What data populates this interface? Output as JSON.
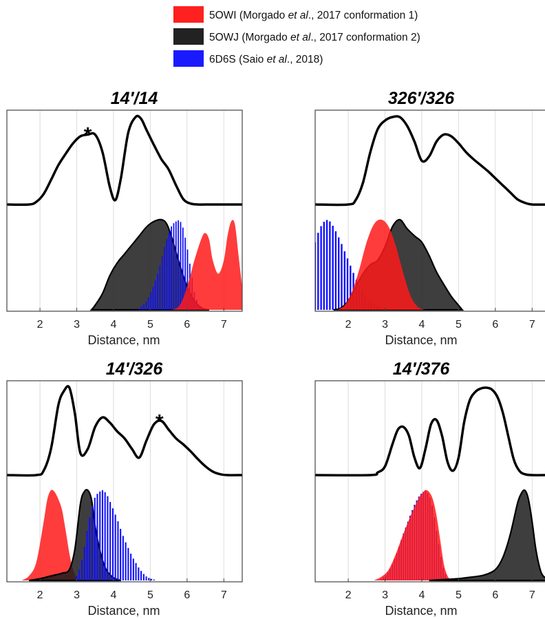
{
  "legend": {
    "items": [
      {
        "parts": [
          {
            "t": "5OWI (Morgado "
          },
          {
            "t": "et al",
            "i": true
          },
          {
            "t": "., 2017 conformation 1)"
          }
        ],
        "color": "#ff2020"
      },
      {
        "parts": [
          {
            "t": "5OWJ (Morgado "
          },
          {
            "t": "et al",
            "i": true
          },
          {
            "t": "., 2017 conformation 2)"
          }
        ],
        "color": "#222222"
      },
      {
        "parts": [
          {
            "t": "6D6S (Saio "
          },
          {
            "t": "et al",
            "i": true
          },
          {
            "t": "., 2018)"
          }
        ],
        "color": "#1a1aff"
      }
    ]
  },
  "colors": {
    "5OWI": "#ff1a1a",
    "5OWJ": "#1c1c1c",
    "6D6S": "#1010ff",
    "experimental": "#000000",
    "grid": "#dcdcdc"
  },
  "chart_data": [
    {
      "type": "area",
      "title": "14′/14",
      "xlabel": "Distance, nm",
      "xlim": [
        1.1,
        7.5
      ],
      "xticks": [
        2,
        3,
        4,
        5,
        6,
        7
      ],
      "grid": true,
      "annotations": [
        {
          "text": "*",
          "x": 3.3
        }
      ],
      "experimental": {
        "x": [
          1.1,
          1.7,
          1.9,
          2.1,
          2.3,
          2.5,
          2.7,
          2.9,
          3.1,
          3.3,
          3.5,
          3.7,
          3.9,
          4.05,
          4.2,
          4.4,
          4.6,
          4.75,
          4.9,
          5.1,
          5.3,
          5.5,
          5.7,
          5.9,
          6.1,
          6.3,
          6.5,
          7.5
        ],
        "y": [
          0,
          0,
          0.03,
          0.12,
          0.28,
          0.45,
          0.58,
          0.7,
          0.78,
          0.8,
          0.8,
          0.6,
          0.2,
          0.05,
          0.3,
          0.82,
          1.0,
          0.98,
          0.85,
          0.68,
          0.52,
          0.4,
          0.22,
          0.06,
          0.01,
          0,
          0,
          0
        ]
      },
      "series": [
        {
          "name": "5OWJ",
          "x": [
            3.4,
            3.5,
            3.7,
            3.9,
            4.1,
            4.3,
            4.5,
            4.7,
            4.9,
            5.1,
            5.3,
            5.45,
            5.6,
            5.8,
            6.0,
            6.2,
            6.4,
            6.6
          ],
          "y": [
            0,
            0.05,
            0.18,
            0.38,
            0.52,
            0.62,
            0.72,
            0.82,
            0.92,
            0.98,
            1.0,
            0.95,
            0.78,
            0.5,
            0.26,
            0.1,
            0.02,
            0
          ]
        },
        {
          "name": "6D6S",
          "type": "histogram",
          "bin_width": 0.0625,
          "x": [
            4.7,
            4.8,
            4.9,
            5.0,
            5.1,
            5.2,
            5.3,
            5.4,
            5.5,
            5.6,
            5.7,
            5.8,
            5.9,
            6.0,
            6.1,
            6.2,
            6.3,
            6.4
          ],
          "y": [
            0.02,
            0.05,
            0.1,
            0.18,
            0.28,
            0.4,
            0.55,
            0.72,
            0.85,
            0.95,
            0.98,
            1.0,
            0.9,
            0.7,
            0.45,
            0.2,
            0.06,
            0.01
          ]
        },
        {
          "name": "5OWI",
          "x": [
            5.6,
            5.8,
            6.0,
            6.2,
            6.4,
            6.5,
            6.6,
            6.7,
            6.85,
            7.0,
            7.1,
            7.2,
            7.3,
            7.4,
            7.5
          ],
          "y": [
            0,
            0.05,
            0.25,
            0.55,
            0.8,
            0.85,
            0.78,
            0.55,
            0.4,
            0.55,
            0.82,
            0.98,
            0.95,
            0.6,
            0.25
          ]
        }
      ]
    },
    {
      "type": "area",
      "title": "326′/326",
      "xlabel": "Distance, nm",
      "xlim": [
        1.1,
        7.5
      ],
      "xticks": [
        2,
        3,
        4,
        5,
        6,
        7
      ],
      "grid": true,
      "annotations": [],
      "experimental": {
        "x": [
          1.1,
          2.0,
          2.2,
          2.4,
          2.6,
          2.8,
          3.0,
          3.2,
          3.4,
          3.6,
          3.8,
          4.0,
          4.2,
          4.4,
          4.6,
          4.8,
          5.0,
          5.2,
          5.4,
          5.6,
          5.8,
          6.0,
          6.2,
          6.4,
          6.6,
          6.8,
          7.0,
          7.5
        ],
        "y": [
          0,
          0,
          0.05,
          0.25,
          0.6,
          0.86,
          0.96,
          1.0,
          1.0,
          0.9,
          0.72,
          0.5,
          0.55,
          0.72,
          0.8,
          0.78,
          0.7,
          0.6,
          0.52,
          0.45,
          0.38,
          0.3,
          0.22,
          0.14,
          0.06,
          0.02,
          0,
          0
        ]
      },
      "series": [
        {
          "name": "6D6S",
          "type": "histogram",
          "bin_width": 0.08,
          "x": [
            1.1,
            1.2,
            1.3,
            1.4,
            1.5,
            1.6,
            1.7,
            1.8,
            1.9,
            2.0,
            2.1,
            2.2,
            2.3,
            2.4,
            2.5,
            2.6,
            2.7,
            2.8,
            2.9,
            3.0,
            3.1
          ],
          "y": [
            0.75,
            0.88,
            0.96,
            1.0,
            0.98,
            0.92,
            0.84,
            0.75,
            0.65,
            0.55,
            0.45,
            0.35,
            0.27,
            0.2,
            0.14,
            0.1,
            0.07,
            0.04,
            0.02,
            0.01,
            0
          ]
        },
        {
          "name": "5OWJ",
          "x": [
            1.6,
            1.8,
            2.0,
            2.2,
            2.4,
            2.6,
            2.8,
            3.0,
            3.2,
            3.4,
            3.6,
            3.8,
            4.0,
            4.2,
            4.4,
            4.6,
            4.8,
            5.0,
            5.1
          ],
          "y": [
            0,
            0.02,
            0.1,
            0.25,
            0.4,
            0.5,
            0.55,
            0.7,
            0.92,
            1.0,
            0.9,
            0.82,
            0.75,
            0.6,
            0.42,
            0.28,
            0.15,
            0.05,
            0
          ]
        },
        {
          "name": "5OWI",
          "x": [
            1.7,
            1.9,
            2.1,
            2.3,
            2.5,
            2.7,
            2.9,
            3.1,
            3.3,
            3.5,
            3.7,
            3.9,
            4.1
          ],
          "y": [
            0,
            0.05,
            0.2,
            0.45,
            0.75,
            0.95,
            1.0,
            0.92,
            0.7,
            0.4,
            0.15,
            0.03,
            0
          ]
        }
      ]
    },
    {
      "type": "area",
      "title": "14′/326",
      "xlabel": "Distance, nm",
      "xlim": [
        1.1,
        7.5
      ],
      "xticks": [
        2,
        3,
        4,
        5,
        6,
        7
      ],
      "grid": true,
      "annotations": [
        {
          "text": "*",
          "x": 5.25
        }
      ],
      "experimental": {
        "x": [
          1.1,
          1.9,
          2.1,
          2.3,
          2.5,
          2.65,
          2.8,
          2.95,
          3.1,
          3.3,
          3.5,
          3.7,
          3.9,
          4.1,
          4.3,
          4.5,
          4.7,
          4.9,
          5.1,
          5.3,
          5.5,
          5.7,
          5.9,
          6.1,
          6.3,
          6.5,
          6.7,
          6.9,
          7.1,
          7.5
        ],
        "y": [
          0,
          0,
          0.05,
          0.3,
          0.8,
          0.96,
          1.0,
          0.7,
          0.25,
          0.3,
          0.55,
          0.66,
          0.6,
          0.5,
          0.42,
          0.3,
          0.2,
          0.4,
          0.58,
          0.62,
          0.52,
          0.42,
          0.35,
          0.27,
          0.18,
          0.1,
          0.04,
          0.01,
          0,
          0
        ]
      },
      "series": [
        {
          "name": "5OWI",
          "x": [
            1.5,
            1.7,
            1.9,
            2.1,
            2.2,
            2.3,
            2.4,
            2.5,
            2.6,
            2.7,
            2.8,
            2.9,
            3.0,
            3.1
          ],
          "y": [
            0,
            0.05,
            0.2,
            0.65,
            0.9,
            1.0,
            0.98,
            0.9,
            0.78,
            0.55,
            0.3,
            0.12,
            0.03,
            0
          ]
        },
        {
          "name": "5OWJ",
          "x": [
            1.7,
            2.0,
            2.3,
            2.6,
            2.8,
            2.95,
            3.1,
            3.2,
            3.3,
            3.4,
            3.5,
            3.65,
            3.8,
            4.0,
            4.2
          ],
          "y": [
            0,
            0.02,
            0.05,
            0.08,
            0.12,
            0.35,
            0.85,
            0.98,
            1.0,
            0.9,
            0.6,
            0.3,
            0.12,
            0.03,
            0
          ]
        },
        {
          "name": "6D6S",
          "type": "histogram",
          "bin_width": 0.07,
          "x": [
            3.0,
            3.1,
            3.2,
            3.3,
            3.4,
            3.5,
            3.6,
            3.7,
            3.8,
            3.9,
            4.0,
            4.1,
            4.2,
            4.3,
            4.4,
            4.5,
            4.6,
            4.7,
            4.8,
            4.9,
            5.0,
            5.1
          ],
          "y": [
            0.05,
            0.15,
            0.35,
            0.6,
            0.8,
            0.93,
            0.98,
            1.0,
            0.97,
            0.88,
            0.78,
            0.68,
            0.56,
            0.45,
            0.36,
            0.27,
            0.2,
            0.13,
            0.08,
            0.04,
            0.02,
            0.01
          ]
        }
      ]
    },
    {
      "type": "area",
      "title": "14′/376",
      "xlabel": "Distance, nm",
      "xlim": [
        1.1,
        7.5
      ],
      "xticks": [
        2,
        3,
        4,
        5,
        6,
        7
      ],
      "grid": true,
      "annotations": [],
      "experimental": {
        "x": [
          1.1,
          2.6,
          2.8,
          3.0,
          3.2,
          3.35,
          3.5,
          3.65,
          3.8,
          3.95,
          4.1,
          4.25,
          4.4,
          4.55,
          4.7,
          4.85,
          5.0,
          5.15,
          5.3,
          5.45,
          5.6,
          5.75,
          5.9,
          6.05,
          6.2,
          6.35,
          6.5,
          6.65,
          6.8,
          7.0,
          7.5
        ],
        "y": [
          0,
          0,
          0.03,
          0.1,
          0.35,
          0.52,
          0.55,
          0.45,
          0.2,
          0.08,
          0.3,
          0.58,
          0.63,
          0.45,
          0.15,
          0.05,
          0.2,
          0.6,
          0.85,
          0.95,
          0.99,
          1.0,
          0.98,
          0.9,
          0.72,
          0.45,
          0.18,
          0.05,
          0.01,
          0,
          0
        ]
      },
      "series": [
        {
          "name": "6D6S",
          "type": "histogram",
          "bin_width": 0.06,
          "x": [
            2.9,
            3.0,
            3.1,
            3.2,
            3.3,
            3.4,
            3.5,
            3.6,
            3.7,
            3.8,
            3.9,
            4.0,
            4.1,
            4.2,
            4.3,
            4.4,
            4.5,
            4.6,
            4.7
          ],
          "y": [
            0.02,
            0.05,
            0.1,
            0.18,
            0.28,
            0.4,
            0.52,
            0.63,
            0.74,
            0.84,
            0.92,
            0.97,
            1.0,
            0.95,
            0.8,
            0.55,
            0.3,
            0.1,
            0.02
          ]
        },
        {
          "name": "5OWI",
          "x": [
            2.7,
            2.9,
            3.1,
            3.3,
            3.5,
            3.7,
            3.9,
            4.0,
            4.1,
            4.2,
            4.3,
            4.4,
            4.5,
            4.6,
            4.7,
            4.8
          ],
          "y": [
            0,
            0.04,
            0.12,
            0.3,
            0.52,
            0.72,
            0.9,
            0.96,
            1.0,
            0.98,
            0.9,
            0.72,
            0.45,
            0.18,
            0.05,
            0
          ]
        },
        {
          "name": "5OWJ",
          "x": [
            4.2,
            4.6,
            5.0,
            5.4,
            5.7,
            6.0,
            6.2,
            6.4,
            6.6,
            6.7,
            6.8,
            6.9,
            7.0,
            7.1,
            7.2,
            7.3,
            7.5
          ],
          "y": [
            0,
            0.01,
            0.02,
            0.04,
            0.06,
            0.12,
            0.25,
            0.5,
            0.85,
            0.96,
            1.0,
            0.9,
            0.65,
            0.35,
            0.15,
            0.05,
            0
          ]
        }
      ]
    }
  ]
}
